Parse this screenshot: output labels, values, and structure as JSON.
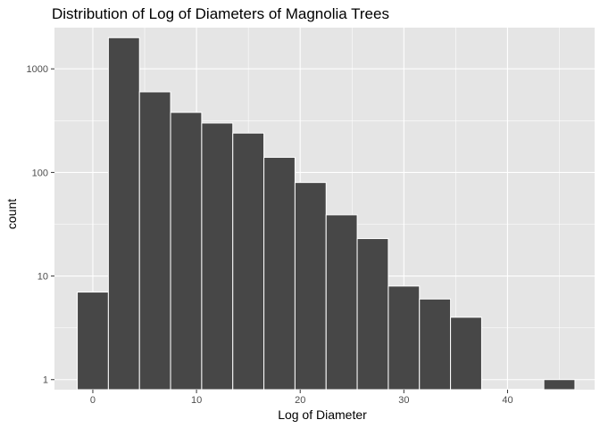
{
  "chart_data": {
    "type": "bar",
    "title": "Distribution of Log of Diameters of Magnolia Trees",
    "xlabel": "Log of Diameter",
    "ylabel": "count",
    "y_scale": "log10",
    "xlim": [
      -3.7,
      48.4
    ],
    "ylim": [
      0.8,
      2500
    ],
    "x_ticks": [
      0,
      10,
      20,
      30,
      40
    ],
    "y_ticks": [
      1,
      10,
      100,
      1000
    ],
    "x_tick_labels": [
      "0",
      "10",
      "20",
      "30",
      "40"
    ],
    "y_tick_labels": [
      "1",
      "10",
      "100",
      "1000"
    ],
    "bin_width": 3,
    "bins": [
      {
        "start": -1.5,
        "end": 1.5,
        "count": 7
      },
      {
        "start": 1.5,
        "end": 4.5,
        "count": 2000
      },
      {
        "start": 4.5,
        "end": 7.5,
        "count": 600
      },
      {
        "start": 7.5,
        "end": 10.5,
        "count": 380
      },
      {
        "start": 10.5,
        "end": 13.5,
        "count": 300
      },
      {
        "start": 13.5,
        "end": 16.5,
        "count": 240
      },
      {
        "start": 16.5,
        "end": 19.5,
        "count": 140
      },
      {
        "start": 19.5,
        "end": 22.5,
        "count": 80
      },
      {
        "start": 22.5,
        "end": 25.5,
        "count": 39
      },
      {
        "start": 25.5,
        "end": 28.5,
        "count": 23
      },
      {
        "start": 28.5,
        "end": 31.5,
        "count": 8
      },
      {
        "start": 31.5,
        "end": 34.5,
        "count": 6
      },
      {
        "start": 34.5,
        "end": 37.5,
        "count": 4
      },
      {
        "start": 37.5,
        "end": 40.5,
        "count": 0
      },
      {
        "start": 40.5,
        "end": 43.5,
        "count": 0
      },
      {
        "start": 43.5,
        "end": 46.5,
        "count": 1
      }
    ],
    "grid": true,
    "bar_fill": "#474747",
    "bar_outline": "#ffffff",
    "panel_background": "#e5e5e5",
    "grid_color": "#ffffff"
  }
}
